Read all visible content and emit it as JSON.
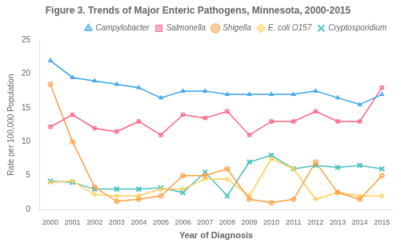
{
  "chart_data": {
    "type": "line",
    "title": "Figure 3. Trends of Major Enteric Pathogens, Minnesota, 2000-2015",
    "xlabel": "Year of Diagnosis",
    "ylabel": "Rate per 100,000 Population",
    "x": [
      2000,
      2001,
      2002,
      2003,
      2004,
      2005,
      2006,
      2007,
      2008,
      2009,
      2010,
      2011,
      2012,
      2013,
      2014,
      2015
    ],
    "series": [
      {
        "name": "Campylobacter",
        "marker": "triangle",
        "values": [
          22,
          19.5,
          19,
          18.5,
          18,
          16.5,
          17.5,
          17.5,
          17,
          17,
          17,
          17,
          17.5,
          16.5,
          15.5,
          17
        ]
      },
      {
        "name": "Salmonella",
        "marker": "square",
        "values": [
          12.2,
          14,
          12,
          11.5,
          13,
          11,
          14,
          13.5,
          14.5,
          11,
          13,
          13,
          14.5,
          13,
          13,
          18
        ]
      },
      {
        "name": "Shigella",
        "marker": "circle",
        "values": [
          18.5,
          10,
          3.3,
          1.2,
          1.5,
          2.0,
          5.0,
          5.0,
          6.0,
          1.5,
          1.0,
          1.5,
          7.0,
          2.5,
          1.5,
          5.0
        ]
      },
      {
        "name": "E. coli O157",
        "marker": "diamond",
        "values": [
          4.0,
          4.2,
          2.2,
          2.0,
          2.0,
          3.0,
          3.0,
          4.5,
          4.5,
          2.0,
          7.5,
          6.0,
          1.5,
          2.5,
          2.0,
          2.0
        ]
      },
      {
        "name": "Cryptosporidium",
        "marker": "x",
        "values": [
          4.2,
          4.0,
          3.0,
          3.0,
          3.0,
          3.2,
          2.5,
          5.5,
          2.0,
          7.0,
          8.0,
          6.0,
          6.5,
          6.2,
          6.5,
          6.0
        ]
      }
    ],
    "xlim": [
      1999.5,
      2015.5
    ],
    "xticks": [
      2000,
      2001,
      2002,
      2003,
      2004,
      2005,
      2006,
      2007,
      2008,
      2009,
      2010,
      2011,
      2012,
      2013,
      2014,
      2015
    ],
    "ylim": [
      0,
      25
    ],
    "yticks": [
      0,
      5,
      10,
      15,
      20,
      25
    ],
    "grid": false,
    "legend": "upper right"
  }
}
